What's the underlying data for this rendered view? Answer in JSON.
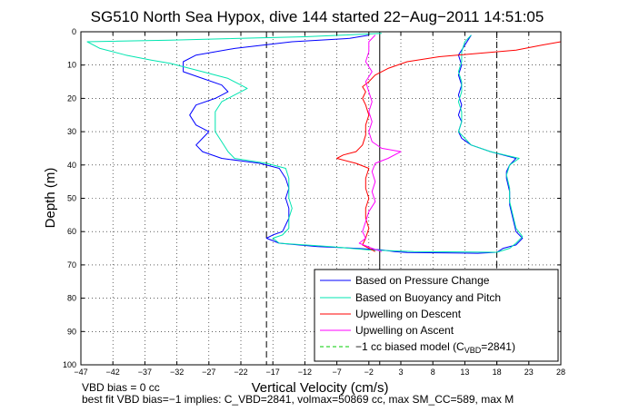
{
  "chart_data": {
    "type": "line",
    "title": "SG510 North Sea Hypox, dive 144 started 22−Aug−2011 14:51:05",
    "xlabel": "Vertical Velocity (cm/s)",
    "ylabel": "Depth (m)",
    "xlim": [
      -47,
      28
    ],
    "ylim": [
      0,
      100
    ],
    "y_reversed": true,
    "grid": true,
    "x_ticks": [
      -47,
      -42,
      -37,
      -32,
      -27,
      -22,
      -17,
      -12,
      -7,
      -2,
      3,
      8,
      13,
      18,
      23,
      28
    ],
    "x_tick_labels": [
      "−47",
      "−42",
      "−37",
      "−32",
      "−27",
      "−22",
      "−17",
      "−12",
      "−7",
      "−2",
      "3",
      "8",
      "13",
      "18",
      "23",
      "28"
    ],
    "y_ticks": [
      0,
      10,
      20,
      30,
      40,
      50,
      60,
      70,
      80,
      90,
      100
    ],
    "y_tick_labels": [
      "0",
      "10",
      "20",
      "30",
      "40",
      "50",
      "60",
      "70",
      "80",
      "90",
      "100"
    ],
    "legend_position": "bottom-right",
    "reference_lines_x": [
      -18,
      -0.3,
      18
    ],
    "series": [
      {
        "name": "Based on Pressure Change",
        "color": "#0000ff",
        "style": "solid",
        "points": [
          [
            -2,
            1
          ],
          [
            -5,
            2
          ],
          [
            -14,
            3
          ],
          [
            -23,
            5
          ],
          [
            -29,
            7
          ],
          [
            -31,
            9
          ],
          [
            -31,
            12
          ],
          [
            -28,
            14
          ],
          [
            -25,
            16
          ],
          [
            -24,
            18
          ],
          [
            -26,
            20
          ],
          [
            -29,
            22
          ],
          [
            -30,
            25
          ],
          [
            -29,
            28
          ],
          [
            -27,
            30
          ],
          [
            -28,
            32
          ],
          [
            -29,
            34
          ],
          [
            -28,
            36
          ],
          [
            -25,
            38
          ],
          [
            -19,
            39.5
          ],
          [
            -16,
            41
          ],
          [
            -15,
            44
          ],
          [
            -14.5,
            47
          ],
          [
            -15,
            50
          ],
          [
            -14.5,
            53
          ],
          [
            -14.5,
            56
          ],
          [
            -15,
            58
          ],
          [
            -15.5,
            60
          ],
          [
            -17,
            61
          ],
          [
            -18,
            62
          ],
          [
            -16,
            63.5
          ],
          [
            -10,
            64.5
          ],
          [
            -4,
            65
          ],
          [
            0,
            65.5
          ],
          [
            2,
            66
          ],
          [
            4,
            66.3
          ],
          [
            15,
            66.5
          ],
          [
            18,
            66.2
          ],
          [
            19,
            65
          ],
          [
            21,
            64
          ],
          [
            22,
            62
          ],
          [
            21,
            60
          ],
          [
            20.5,
            56
          ],
          [
            20,
            52
          ],
          [
            20,
            48
          ],
          [
            19.5,
            44
          ],
          [
            19.5,
            42
          ],
          [
            20,
            40
          ],
          [
            21,
            38
          ],
          [
            17,
            36
          ],
          [
            14,
            34
          ],
          [
            12.5,
            32
          ],
          [
            12,
            30
          ],
          [
            12.5,
            27
          ],
          [
            12,
            25
          ],
          [
            12.5,
            22
          ],
          [
            12,
            19
          ],
          [
            12.5,
            16
          ],
          [
            12,
            13
          ],
          [
            12.5,
            10
          ],
          [
            12,
            7
          ],
          [
            13,
            4
          ],
          [
            14,
            1
          ]
        ]
      },
      {
        "name": "Based on Buoyancy and Pitch",
        "color": "#00e5b0",
        "style": "solid",
        "points": [
          [
            0,
            0.5
          ],
          [
            -12,
            1.5
          ],
          [
            -33,
            2.5
          ],
          [
            -46,
            3
          ],
          [
            -44,
            5
          ],
          [
            -40,
            7
          ],
          [
            -36,
            8.5
          ],
          [
            -33,
            9.5
          ],
          [
            -28,
            12
          ],
          [
            -24,
            14
          ],
          [
            -22,
            16
          ],
          [
            -21,
            17
          ],
          [
            -23,
            19
          ],
          [
            -25,
            21
          ],
          [
            -26,
            24
          ],
          [
            -26,
            27
          ],
          [
            -26,
            30
          ],
          [
            -25,
            33
          ],
          [
            -24,
            36
          ],
          [
            -23,
            38
          ],
          [
            -18,
            39.5
          ],
          [
            -15,
            41
          ],
          [
            -14.5,
            44
          ],
          [
            -14.5,
            47
          ],
          [
            -14.5,
            50
          ],
          [
            -14,
            53
          ],
          [
            -14.5,
            56
          ],
          [
            -14.5,
            59
          ],
          [
            -15.5,
            61
          ],
          [
            -17,
            62
          ],
          [
            -16,
            63.5
          ],
          [
            -8,
            64.5
          ],
          [
            -2,
            65.5
          ],
          [
            5,
            66
          ],
          [
            18,
            66.2
          ],
          [
            20,
            65
          ],
          [
            21,
            63.5
          ],
          [
            22,
            61.5
          ],
          [
            21,
            59
          ],
          [
            20.5,
            55
          ],
          [
            20,
            51
          ],
          [
            20,
            47
          ],
          [
            19.5,
            43
          ],
          [
            20,
            40
          ],
          [
            21.5,
            38
          ],
          [
            17,
            36
          ],
          [
            14,
            34
          ],
          [
            13,
            32
          ],
          [
            12,
            30
          ],
          [
            12.5,
            27
          ],
          [
            12.5,
            24
          ],
          [
            12,
            21
          ],
          [
            12.5,
            18
          ],
          [
            12.5,
            15
          ],
          [
            12,
            12
          ],
          [
            12.5,
            9
          ],
          [
            12.5,
            6
          ],
          [
            13,
            3
          ],
          [
            14,
            1
          ]
        ]
      },
      {
        "name": "Upwelling on Descent",
        "color": "#ff0000",
        "style": "solid",
        "points": [
          [
            28,
            3
          ],
          [
            25,
            4
          ],
          [
            21,
            5.5
          ],
          [
            15,
            6.5
          ],
          [
            9,
            7.5
          ],
          [
            4,
            9
          ],
          [
            1,
            11
          ],
          [
            -1,
            13
          ],
          [
            -2,
            15
          ],
          [
            -3,
            16.5
          ],
          [
            -2.5,
            18
          ],
          [
            -3,
            20
          ],
          [
            -2.5,
            22
          ],
          [
            -2,
            25
          ],
          [
            -2.5,
            28
          ],
          [
            -2.5,
            31
          ],
          [
            -3,
            34
          ],
          [
            -4,
            36
          ],
          [
            -6,
            37
          ],
          [
            -7,
            38
          ],
          [
            -4,
            39.5
          ],
          [
            -2,
            41
          ],
          [
            -2.5,
            44
          ],
          [
            -2.5,
            47
          ],
          [
            -2,
            50
          ],
          [
            -2.5,
            53
          ],
          [
            -2.5,
            56
          ],
          [
            -2,
            59
          ],
          [
            -2.5,
            62
          ],
          [
            -3,
            64
          ],
          [
            -2,
            65
          ],
          [
            -1,
            66
          ]
        ]
      },
      {
        "name": "Upwelling on Ascent",
        "color": "#ff00ff",
        "style": "solid",
        "points": [
          [
            -1,
            1
          ],
          [
            -2,
            3
          ],
          [
            -2,
            6
          ],
          [
            -2.5,
            9
          ],
          [
            -1.5,
            12
          ],
          [
            -2.5,
            15
          ],
          [
            -2,
            18
          ],
          [
            -1.5,
            21
          ],
          [
            -2,
            24
          ],
          [
            -1.5,
            27
          ],
          [
            -2,
            30
          ],
          [
            -1.5,
            33
          ],
          [
            0,
            35
          ],
          [
            3,
            36
          ],
          [
            1,
            38
          ],
          [
            -1,
            39.5
          ],
          [
            -1.5,
            42
          ],
          [
            -1,
            45
          ],
          [
            -1.5,
            48
          ],
          [
            -1,
            51
          ],
          [
            -2,
            54
          ],
          [
            -2.5,
            57
          ],
          [
            -3,
            60
          ],
          [
            -2.5,
            62
          ],
          [
            -3.5,
            63.5
          ],
          [
            -1.5,
            65
          ],
          [
            0,
            66
          ]
        ]
      },
      {
        "name": "−1 cc biased model (C_VBD=2841)",
        "color": "#00cc00",
        "style": "dashed",
        "points": []
      }
    ],
    "legend_entries": [
      "Based on Pressure Change",
      "Based on Buoyancy and Pitch",
      "Upwelling on Descent",
      "Upwelling on Ascent"
    ],
    "legend_last_prefix": "−1 cc biased model (C",
    "legend_last_sub": "VBD",
    "legend_last_suffix": "=2841)",
    "annotations": [
      "VBD bias = 0 cc",
      "best fit VBD bias=−1 implies: C_VBD=2841, volmax=50869 cc, max SM_CC=589, max M"
    ]
  }
}
